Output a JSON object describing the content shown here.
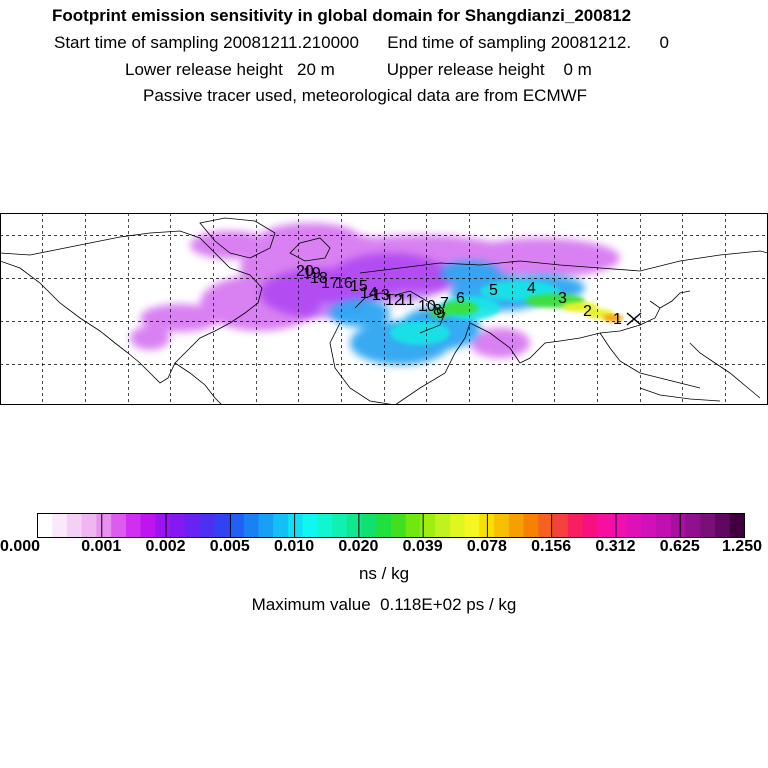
{
  "header": {
    "title": "Footprint emission sensitivity in global domain for Shangdianzi_200812",
    "sampling": "Start time of sampling 20081211.210000      End time of sampling 20081212.      0",
    "release": "Lower release height   20 m           Upper release height    0 m",
    "tracer": "Passive tracer used, meteorological data are from ECMWF"
  },
  "map": {
    "receptor_marker": "x-marker",
    "day_labels": [
      "1",
      "2",
      "3",
      "4",
      "5",
      "6",
      "7",
      "8",
      "9",
      "10",
      "11",
      "12",
      "13",
      "14",
      "15",
      "16",
      "17",
      "18",
      "19",
      "20"
    ]
  },
  "colorbar": {
    "tick_labels": [
      "0.000",
      "0.001",
      "0.002",
      "0.005",
      "0.010",
      "0.020",
      "0.039",
      "0.078",
      "0.156",
      "0.312",
      "0.625",
      "1.250"
    ],
    "colors": [
      "#ffffff",
      "#fbe8fb",
      "#f4d0f4",
      "#efb6f1",
      "#e88ff0",
      "#dd5cf0",
      "#d02ff1",
      "#bd14f0",
      "#9b14f2",
      "#8419f2",
      "#6a21f4",
      "#4e30f4",
      "#3440f4",
      "#2060f4",
      "#1b80f4",
      "#18a0f6",
      "#14c0f6",
      "#10e0f6",
      "#10f6f0",
      "#10f6d0",
      "#10f0b0",
      "#10e890",
      "#10e070",
      "#20e040",
      "#40e020",
      "#70e810",
      "#a0ee10",
      "#c0f220",
      "#e0f620",
      "#f6f620",
      "#f6e000",
      "#f6c000",
      "#f6a000",
      "#f68000",
      "#f66020",
      "#f64040",
      "#f62060",
      "#f61080",
      "#f610a0",
      "#f010b0",
      "#e010b8",
      "#d010b8",
      "#c010b0",
      "#a810a0",
      "#901090",
      "#781078",
      "#600860",
      "#400040"
    ]
  },
  "unit_label": "ns / kg",
  "max_label": "Maximum value  0.118E+02 ps / kg"
}
